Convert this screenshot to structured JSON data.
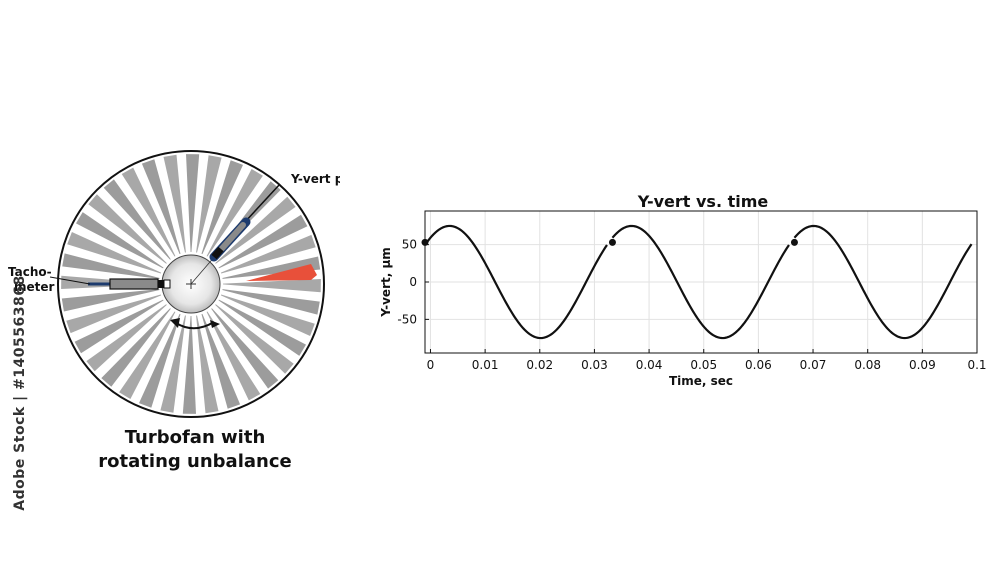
{
  "diagram": {
    "probe_label": "Y-vert probe",
    "tacho_label_line1": "Tacho-",
    "tacho_label_line2": "meter",
    "caption_line1": "Turbofan with",
    "caption_line2": "rotating unbalance",
    "blade_count": 36,
    "unbalance_color": "#e8503a"
  },
  "watermark": "Adobe Stock | #1405563868",
  "chart_data": {
    "type": "line",
    "title": "Y-vert vs. time",
    "xlabel": "Time, sec",
    "ylabel": "Y-vert, μm",
    "xlim": [
      -0.001,
      0.1
    ],
    "ylim": [
      -95,
      95
    ],
    "xticks": [
      0,
      0.01,
      0.02,
      0.03,
      0.04,
      0.05,
      0.06,
      0.07,
      0.08,
      0.09,
      0.1
    ],
    "xtick_labels": [
      "0",
      "0.01",
      "0.02",
      "0.03",
      "0.04",
      "0.05",
      "0.06",
      "0.07",
      "0.08",
      "0.09",
      "0.1"
    ],
    "yticks": [
      -50,
      0,
      50
    ],
    "ytick_labels": [
      "-50",
      "0",
      "50"
    ],
    "grid": true,
    "series": [
      {
        "amplitude": 75,
        "period": 0.0333,
        "phase_peak_time": 0.0035,
        "segments": [
          [
            -0.001,
            0.0323
          ],
          [
            0.0333,
            0.0656
          ],
          [
            0.0666,
            0.099
          ]
        ],
        "marker_points": [
          [
            -0.001,
            53
          ],
          [
            0.0333,
            53
          ],
          [
            0.0666,
            53
          ]
        ]
      }
    ]
  }
}
